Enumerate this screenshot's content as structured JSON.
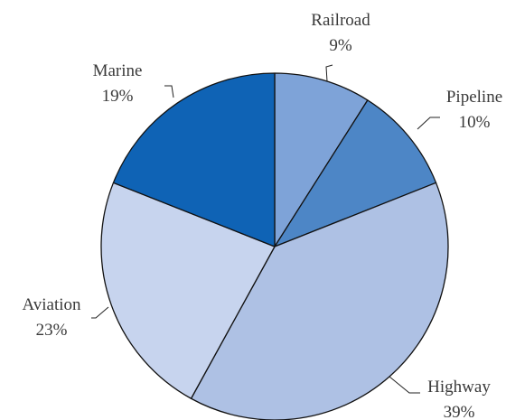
{
  "chart_data": {
    "type": "pie",
    "title": "",
    "slices": [
      {
        "label": "Railroad",
        "value": 9,
        "pct_text": "9%",
        "color": "#7ea3d8"
      },
      {
        "label": "Pipeline",
        "value": 10,
        "pct_text": "10%",
        "color": "#4d86c6"
      },
      {
        "label": "Highway",
        "value": 39,
        "pct_text": "39%",
        "color": "#aec1e4"
      },
      {
        "label": "Aviation",
        "value": 23,
        "pct_text": "23%",
        "color": "#c7d4ee"
      },
      {
        "label": "Marine",
        "value": 19,
        "pct_text": "19%",
        "color": "#0f63b5"
      }
    ],
    "start_angle": "12 o'clock",
    "direction": "clockwise",
    "legend": "none",
    "labels": "outside with leader lines"
  }
}
